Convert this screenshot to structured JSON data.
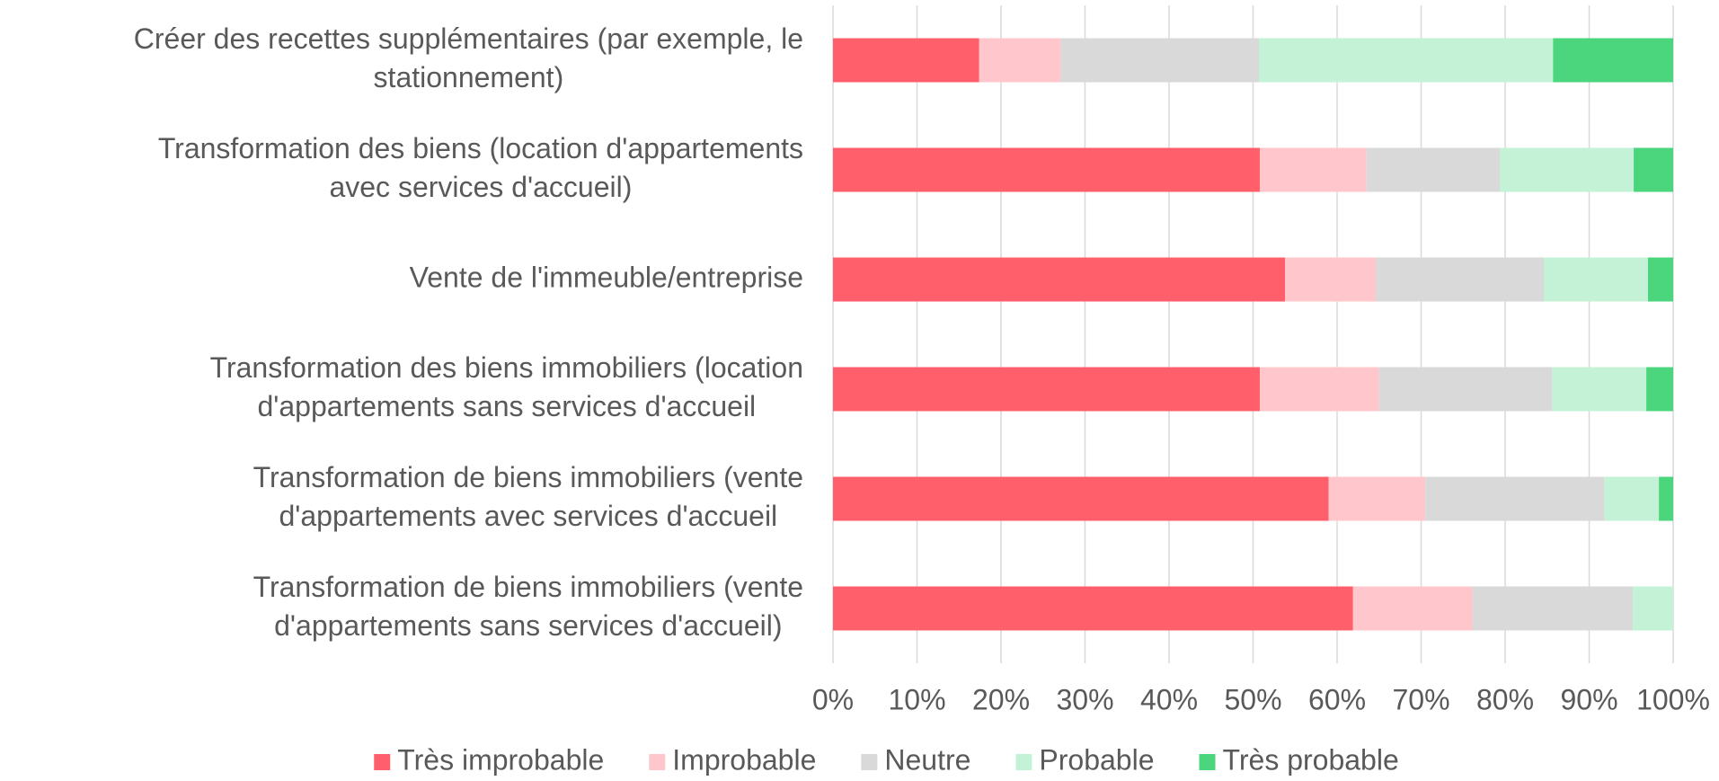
{
  "chart_data": {
    "type": "stacked-bar-horizontal",
    "categories": [
      [
        "Créer des recettes supplémentaires (par exemple, le",
        "stationnement)"
      ],
      [
        "Transformation des biens (location d'appartements",
        "avec services d'accueil)"
      ],
      [
        "Vente de l'immeuble/entreprise"
      ],
      [
        "Transformation des biens immobiliers  (location",
        "d'appartements sans services d'accueil"
      ],
      [
        "Transformation de biens immobiliers (vente",
        "d'appartements avec services d'accueil"
      ],
      [
        "Transformation de biens immobiliers (vente",
        "d'appartements sans services d'accueil)"
      ]
    ],
    "series": [
      {
        "name": "Très improbable",
        "color": "#ff5f6b",
        "values": [
          17.4,
          50.8,
          53.8,
          50.8,
          59.0,
          61.9
        ]
      },
      {
        "name": "Improbable",
        "color": "#ffc7cb",
        "values": [
          9.7,
          12.7,
          10.8,
          14.2,
          11.5,
          14.2
        ]
      },
      {
        "name": "Neutre",
        "color": "#d9d9d9",
        "values": [
          23.6,
          15.9,
          20.0,
          20.6,
          21.3,
          19.1
        ]
      },
      {
        "name": "Probable",
        "color": "#c3f2d6",
        "values": [
          35.0,
          15.9,
          12.4,
          11.2,
          6.5,
          4.8
        ]
      },
      {
        "name": "Très probable",
        "color": "#4bd67e",
        "values": [
          14.3,
          4.7,
          3.0,
          3.2,
          1.7,
          0
        ]
      }
    ],
    "xlim": [
      0,
      100
    ],
    "xticks": [
      {
        "value": 0,
        "label": "0%"
      },
      {
        "value": 10,
        "label": "10%"
      },
      {
        "value": 20,
        "label": "20%"
      },
      {
        "value": 30,
        "label": "30%"
      },
      {
        "value": 40,
        "label": "40%"
      },
      {
        "value": 50,
        "label": "50%"
      },
      {
        "value": 60,
        "label": "60%"
      },
      {
        "value": 70,
        "label": "70%"
      },
      {
        "value": 80,
        "label": "80%"
      },
      {
        "value": 90,
        "label": "90%"
      },
      {
        "value": 100,
        "label": "100%"
      }
    ],
    "grid": true,
    "legend": "bottom"
  }
}
